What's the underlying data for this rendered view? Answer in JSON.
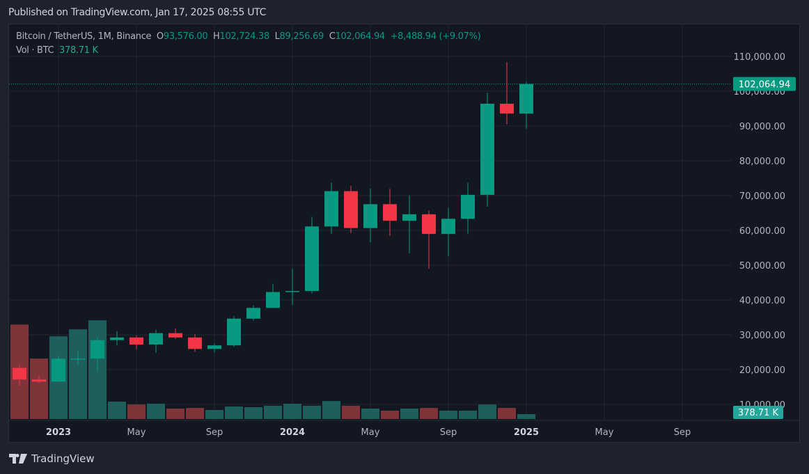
{
  "header": {
    "published": "Published on TradingView.com, Jan 17, 2025 08:55 UTC"
  },
  "legend": {
    "symbol": "Bitcoin / TetherUS, 1M, Binance",
    "o_label": "O",
    "o": "93,576.00",
    "h_label": "H",
    "h": "102,724.38",
    "l_label": "L",
    "l": "89,256.69",
    "c_label": "C",
    "c": "102,064.94",
    "change": "+8,488.94 (+9.07%)",
    "vol_label": "Vol · BTC",
    "vol": "378.71 K"
  },
  "footer": {
    "brand": "TradingView"
  },
  "colors": {
    "up": "#089981",
    "down": "#f23645",
    "vol_up": "#1e5f5c",
    "vol_down": "#7f3439",
    "background": "#131722"
  },
  "chart_data": {
    "type": "candlestick",
    "interval": "1M",
    "price_axis": {
      "min": 10000,
      "max": 110000,
      "ticks": [
        "110,000.00",
        "100,000.00",
        "90,000.00",
        "80,000.00",
        "70,000.00",
        "60,000.00",
        "50,000.00",
        "40,000.00",
        "30,000.00",
        "20,000.00",
        "10,000.00"
      ],
      "last_price_label": "102,064.94",
      "last_volume_label": "378.71 K"
    },
    "time_axis": {
      "ticks": [
        {
          "label": "2023",
          "month": "2023-01",
          "bold": true
        },
        {
          "label": "May",
          "month": "2023-05"
        },
        {
          "label": "Sep",
          "month": "2023-09"
        },
        {
          "label": "2024",
          "month": "2024-01",
          "bold": true
        },
        {
          "label": "May",
          "month": "2024-05"
        },
        {
          "label": "Sep",
          "month": "2024-09"
        },
        {
          "label": "2025",
          "month": "2025-01",
          "bold": true
        },
        {
          "label": "May",
          "month": "2025-05"
        },
        {
          "label": "Sep",
          "month": "2025-09"
        }
      ]
    },
    "grid": true,
    "candles": [
      {
        "t": "2022-11",
        "o": 20490,
        "h": 21446,
        "l": 15476,
        "c": 17164,
        "v": 7344
      },
      {
        "t": "2022-12",
        "o": 17165,
        "h": 18387,
        "l": 16256,
        "c": 16542,
        "v": 4700
      },
      {
        "t": "2023-01",
        "o": 16541,
        "h": 23960,
        "l": 16499,
        "c": 23125,
        "v": 6430
      },
      {
        "t": "2023-02",
        "o": 23125,
        "h": 25250,
        "l": 21351,
        "c": 23142,
        "v": 6970
      },
      {
        "t": "2023-03",
        "o": 23142,
        "h": 29185,
        "l": 19549,
        "c": 28466,
        "v": 7670
      },
      {
        "t": "2023-04",
        "o": 28466,
        "h": 31000,
        "l": 26942,
        "c": 29233,
        "v": 1350
      },
      {
        "t": "2023-05",
        "o": 29233,
        "h": 29820,
        "l": 25811,
        "c": 27210,
        "v": 1130
      },
      {
        "t": "2023-06",
        "o": 27210,
        "h": 31431,
        "l": 24800,
        "c": 30472,
        "v": 1190
      },
      {
        "t": "2023-07",
        "o": 30472,
        "h": 31804,
        "l": 28861,
        "c": 29232,
        "v": 810
      },
      {
        "t": "2023-08",
        "o": 29232,
        "h": 30245,
        "l": 25166,
        "c": 25941,
        "v": 860
      },
      {
        "t": "2023-09",
        "o": 25941,
        "h": 27488,
        "l": 24901,
        "c": 26963,
        "v": 700
      },
      {
        "t": "2023-10",
        "o": 26963,
        "h": 35280,
        "l": 26538,
        "c": 34639,
        "v": 970
      },
      {
        "t": "2023-11",
        "o": 34640,
        "h": 38450,
        "l": 34097,
        "c": 37723,
        "v": 920
      },
      {
        "t": "2023-12",
        "o": 37723,
        "h": 44700,
        "l": 37616,
        "c": 42284,
        "v": 1030
      },
      {
        "t": "2024-01",
        "o": 42283,
        "h": 48969,
        "l": 38555,
        "c": 42580,
        "v": 1190
      },
      {
        "t": "2024-02",
        "o": 42580,
        "h": 63913,
        "l": 41884,
        "c": 61130,
        "v": 1030
      },
      {
        "t": "2024-03",
        "o": 61131,
        "h": 73777,
        "l": 59005,
        "c": 71280,
        "v": 1400
      },
      {
        "t": "2024-04",
        "o": 71280,
        "h": 72797,
        "l": 59191,
        "c": 60672,
        "v": 1030
      },
      {
        "t": "2024-05",
        "o": 60672,
        "h": 71979,
        "l": 56552,
        "c": 67540,
        "v": 810
      },
      {
        "t": "2024-06",
        "o": 67540,
        "h": 71958,
        "l": 58402,
        "c": 62772,
        "v": 650
      },
      {
        "t": "2024-07",
        "o": 62772,
        "h": 70079,
        "l": 53485,
        "c": 64628,
        "v": 810
      },
      {
        "t": "2024-08",
        "o": 64628,
        "h": 65659,
        "l": 49000,
        "c": 58974,
        "v": 860
      },
      {
        "t": "2024-09",
        "o": 58974,
        "h": 66498,
        "l": 52550,
        "c": 63327,
        "v": 650
      },
      {
        "t": "2024-10",
        "o": 63327,
        "h": 73620,
        "l": 58946,
        "c": 70215,
        "v": 650
      },
      {
        "t": "2024-11",
        "o": 70216,
        "h": 99588,
        "l": 66835,
        "c": 96407,
        "v": 1130
      },
      {
        "t": "2024-12",
        "o": 96407,
        "h": 108353,
        "l": 90500,
        "c": 93576,
        "v": 860
      },
      {
        "t": "2025-01",
        "o": 93576,
        "h": 102724.38,
        "l": 89256.69,
        "c": 102064.94,
        "v": 378.71
      }
    ]
  }
}
